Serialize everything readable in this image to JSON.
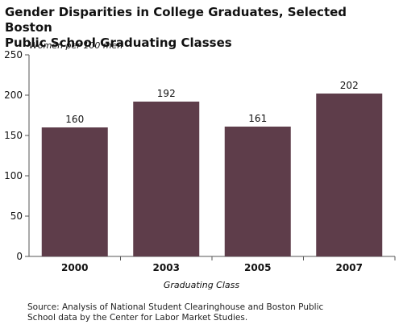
{
  "title_lines": [
    "Gender Disparities in College Graduates, Selected Boston",
    "Public School Graduating Classes"
  ],
  "ylabel": "Women per 100 men",
  "xlabel": "Graduating Class",
  "source_lines": [
    "Source: Analysis of National Student Clearinghouse and Boston Public",
    "School data by the Center for Labor Market Studies."
  ],
  "colors": {
    "bar": "#5e3d4a",
    "axis": "#555555",
    "grid": "#dddddd"
  },
  "chart_data": {
    "type": "bar",
    "categories": [
      "2000",
      "2003",
      "2005",
      "2007"
    ],
    "values": [
      160,
      192,
      161,
      202
    ],
    "data_labels": [
      "160",
      "192",
      "161",
      "202"
    ],
    "ylim": [
      0,
      250
    ],
    "yticks": [
      0,
      50,
      100,
      150,
      200,
      250
    ],
    "grid": false,
    "legend": "none"
  }
}
